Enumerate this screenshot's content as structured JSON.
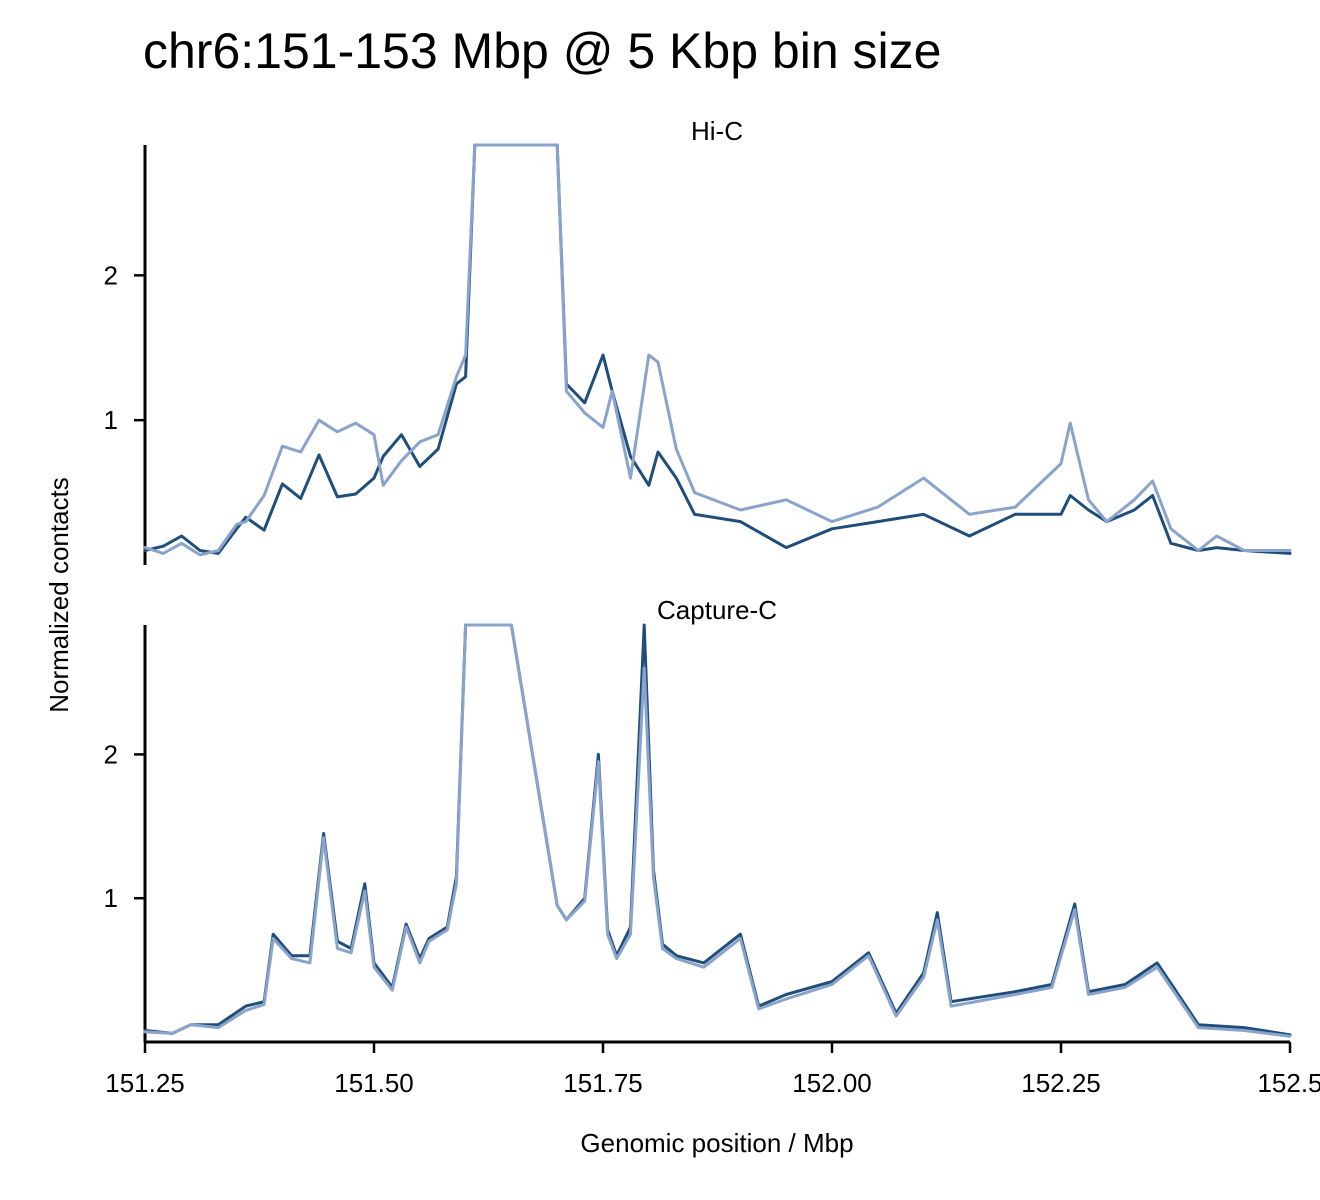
{
  "figure": {
    "title": "chr6:151-153 Mbp @ 5 Kbp bin size",
    "xlabel": "Genomic position / Mbp",
    "ylabel": "Normalized contacts"
  },
  "colors": {
    "series_dark": "#1f4e7a",
    "series_light": "#8aa3cc",
    "axis": "#000000"
  },
  "chart_data": [
    {
      "type": "line",
      "title": "Hi-C",
      "xlabel": "Genomic position / Mbp",
      "ylabel": "Normalized contacts",
      "xlim": [
        151.25,
        152.5
      ],
      "ylim": [
        0.0,
        2.9
      ],
      "xticks": [
        "151.25",
        "151.50",
        "151.75",
        "152.00",
        "152.25",
        "152.5"
      ],
      "yticks": [
        "1",
        "2"
      ],
      "clip_note": "values above 2.9 drawn clipped at the top of the axis",
      "grid": false,
      "series": [
        {
          "color": "#1f4e7a",
          "x": [
            151.25,
            151.27,
            151.29,
            151.31,
            151.33,
            151.35,
            151.36,
            151.38,
            151.4,
            151.42,
            151.44,
            151.46,
            151.48,
            151.5,
            151.51,
            151.53,
            151.55,
            151.57,
            151.59,
            151.6,
            151.61,
            151.65,
            151.7,
            151.71,
            151.73,
            151.75,
            151.76,
            151.78,
            151.8,
            151.81,
            151.83,
            151.85,
            151.9,
            151.95,
            152.0,
            152.05,
            152.1,
            152.15,
            152.2,
            152.25,
            152.26,
            152.28,
            152.3,
            152.33,
            152.35,
            152.37,
            152.4,
            152.42,
            152.45,
            152.5
          ],
          "y": [
            0.1,
            0.13,
            0.2,
            0.1,
            0.08,
            0.25,
            0.33,
            0.24,
            0.56,
            0.46,
            0.76,
            0.47,
            0.49,
            0.6,
            0.75,
            0.9,
            0.68,
            0.8,
            1.25,
            1.3,
            2.9,
            2.9,
            2.9,
            1.25,
            1.12,
            1.45,
            1.2,
            0.75,
            0.55,
            0.78,
            0.6,
            0.35,
            0.3,
            0.12,
            0.25,
            0.3,
            0.35,
            0.2,
            0.35,
            0.35,
            0.48,
            0.38,
            0.3,
            0.38,
            0.48,
            0.15,
            0.1,
            0.12,
            0.1,
            0.08
          ]
        },
        {
          "color": "#8aa3cc",
          "x": [
            151.25,
            151.27,
            151.29,
            151.31,
            151.33,
            151.35,
            151.36,
            151.38,
            151.4,
            151.42,
            151.44,
            151.46,
            151.48,
            151.5,
            151.51,
            151.53,
            151.55,
            151.57,
            151.59,
            151.6,
            151.61,
            151.65,
            151.7,
            151.71,
            151.73,
            151.75,
            151.76,
            151.78,
            151.8,
            151.81,
            151.83,
            151.85,
            151.9,
            151.95,
            152.0,
            152.05,
            152.1,
            152.15,
            152.2,
            152.25,
            152.26,
            152.28,
            152.3,
            152.33,
            152.35,
            152.37,
            152.4,
            152.42,
            152.45,
            152.5
          ],
          "y": [
            0.12,
            0.08,
            0.15,
            0.07,
            0.1,
            0.28,
            0.3,
            0.48,
            0.82,
            0.78,
            1.0,
            0.92,
            0.98,
            0.9,
            0.55,
            0.72,
            0.85,
            0.9,
            1.3,
            1.45,
            2.9,
            2.9,
            2.9,
            1.2,
            1.05,
            0.95,
            1.2,
            0.6,
            1.45,
            1.4,
            0.8,
            0.5,
            0.38,
            0.45,
            0.3,
            0.4,
            0.6,
            0.35,
            0.4,
            0.7,
            0.98,
            0.45,
            0.3,
            0.45,
            0.58,
            0.25,
            0.1,
            0.2,
            0.1,
            0.1
          ]
        }
      ]
    },
    {
      "type": "line",
      "title": "Capture-C",
      "xlabel": "Genomic position / Mbp",
      "ylabel": "Normalized contacts",
      "xlim": [
        151.25,
        152.5
      ],
      "ylim": [
        0.0,
        2.9
      ],
      "xticks": [
        "151.25",
        "151.50",
        "151.75",
        "152.00",
        "152.25",
        "152.5"
      ],
      "yticks": [
        "1",
        "2"
      ],
      "clip_note": "values above 2.9 drawn clipped at the top of the axis",
      "grid": false,
      "series": [
        {
          "color": "#1f4e7a",
          "x": [
            151.25,
            151.28,
            151.3,
            151.33,
            151.36,
            151.38,
            151.39,
            151.41,
            151.43,
            151.445,
            151.46,
            151.475,
            151.49,
            151.5,
            151.52,
            151.535,
            151.55,
            151.56,
            151.58,
            151.59,
            151.6,
            151.61,
            151.65,
            151.7,
            151.71,
            151.73,
            151.745,
            151.755,
            151.765,
            151.78,
            151.795,
            151.805,
            151.815,
            151.83,
            151.86,
            151.9,
            151.92,
            151.95,
            152.0,
            152.04,
            152.07,
            152.1,
            152.115,
            152.13,
            152.2,
            152.24,
            152.265,
            152.28,
            152.32,
            152.355,
            152.4,
            152.45,
            152.5
          ],
          "y": [
            0.08,
            0.06,
            0.12,
            0.12,
            0.25,
            0.28,
            0.75,
            0.6,
            0.6,
            1.45,
            0.7,
            0.65,
            1.1,
            0.55,
            0.38,
            0.82,
            0.58,
            0.72,
            0.8,
            1.15,
            2.9,
            2.9,
            2.9,
            0.95,
            0.85,
            1.0,
            2.0,
            0.78,
            0.6,
            0.8,
            2.9,
            1.2,
            0.68,
            0.6,
            0.55,
            0.75,
            0.25,
            0.33,
            0.42,
            0.62,
            0.2,
            0.48,
            0.9,
            0.28,
            0.35,
            0.4,
            0.96,
            0.35,
            0.4,
            0.55,
            0.12,
            0.1,
            0.05
          ]
        },
        {
          "color": "#8aa3cc",
          "x": [
            151.25,
            151.28,
            151.3,
            151.33,
            151.36,
            151.38,
            151.39,
            151.41,
            151.43,
            151.445,
            151.46,
            151.475,
            151.49,
            151.5,
            151.52,
            151.535,
            151.55,
            151.56,
            151.58,
            151.59,
            151.6,
            151.61,
            151.65,
            151.7,
            151.71,
            151.73,
            151.745,
            151.755,
            151.765,
            151.78,
            151.795,
            151.805,
            151.815,
            151.83,
            151.86,
            151.9,
            151.92,
            151.95,
            152.0,
            152.04,
            152.07,
            152.1,
            152.115,
            152.13,
            152.2,
            152.24,
            152.265,
            152.28,
            152.32,
            152.355,
            152.4,
            152.45,
            152.5
          ],
          "y": [
            0.07,
            0.06,
            0.12,
            0.1,
            0.22,
            0.26,
            0.72,
            0.58,
            0.55,
            1.42,
            0.65,
            0.62,
            1.05,
            0.52,
            0.36,
            0.8,
            0.55,
            0.7,
            0.78,
            1.1,
            2.9,
            2.9,
            2.9,
            0.95,
            0.85,
            0.98,
            1.95,
            0.75,
            0.58,
            0.75,
            2.6,
            1.15,
            0.65,
            0.58,
            0.52,
            0.72,
            0.23,
            0.3,
            0.4,
            0.6,
            0.18,
            0.45,
            0.85,
            0.25,
            0.33,
            0.38,
            0.92,
            0.33,
            0.38,
            0.52,
            0.1,
            0.08,
            0.04
          ]
        }
      ]
    }
  ]
}
